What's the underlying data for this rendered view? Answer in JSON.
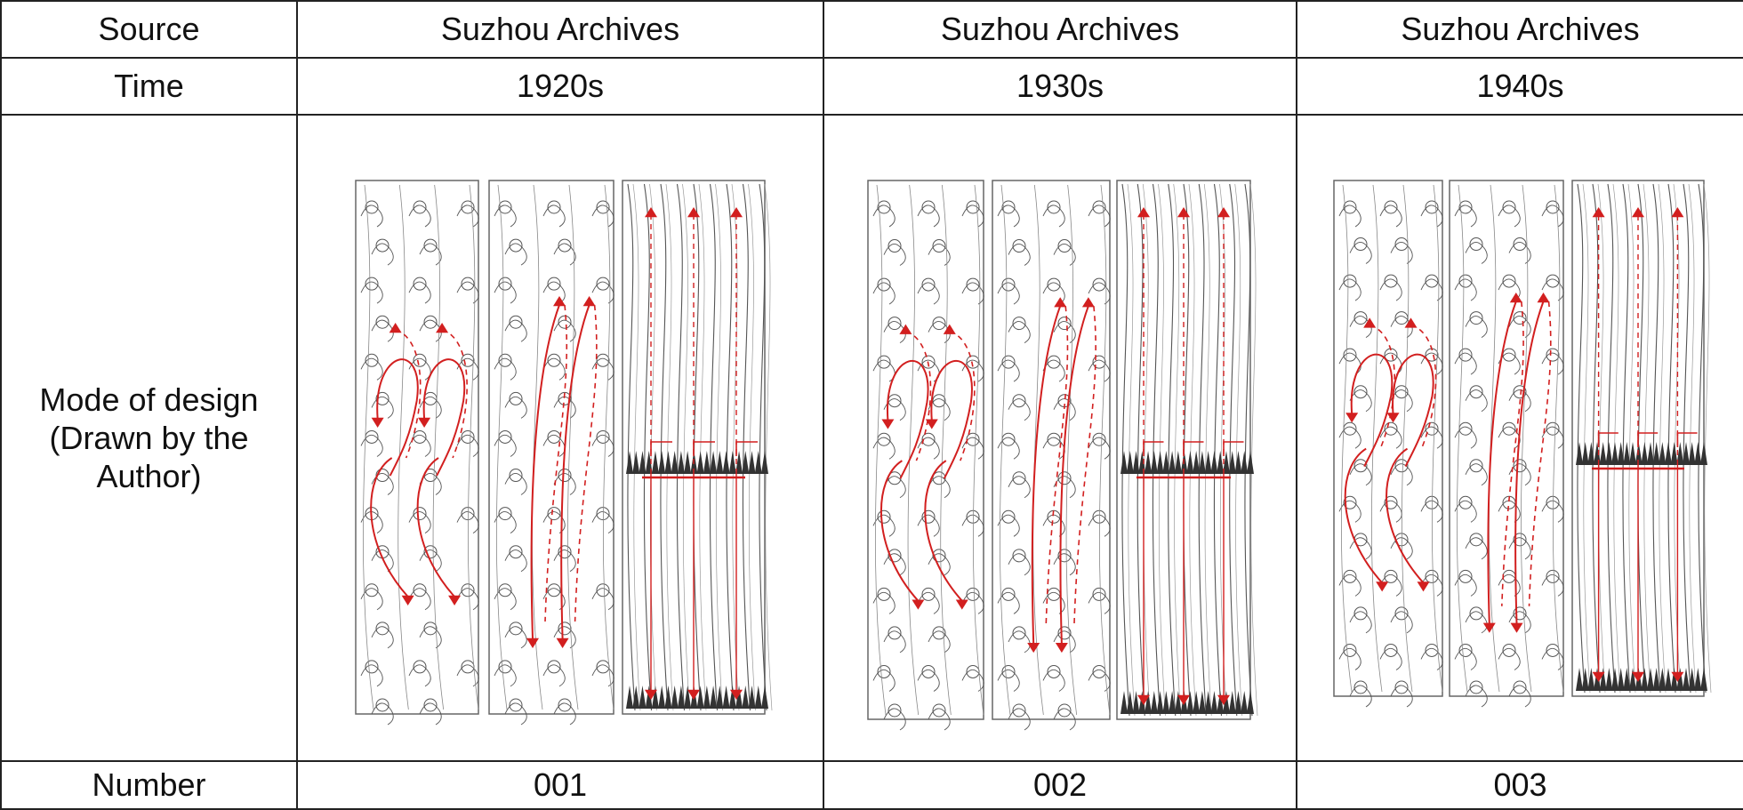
{
  "table": {
    "row_headers": {
      "source": "Source",
      "time": "Time",
      "design": [
        "Mode of design",
        "(Drawn by the",
        "Author)"
      ],
      "number": "Number"
    },
    "columns": [
      {
        "source": "Suzhou Archives",
        "time": "1920s",
        "number": "001"
      },
      {
        "source": "Suzhou Archives",
        "time": "1930s",
        "number": "002"
      },
      {
        "source": "Suzhou Archives",
        "time": "1940s",
        "number": "003"
      }
    ]
  },
  "colors": {
    "grid": "#222222",
    "arrow": "#d21f1f",
    "sketch": "#555555"
  },
  "icons": [
    "floral-pattern-panel",
    "feather-pattern-panel",
    "arrow-curve",
    "arrow-dashed"
  ]
}
